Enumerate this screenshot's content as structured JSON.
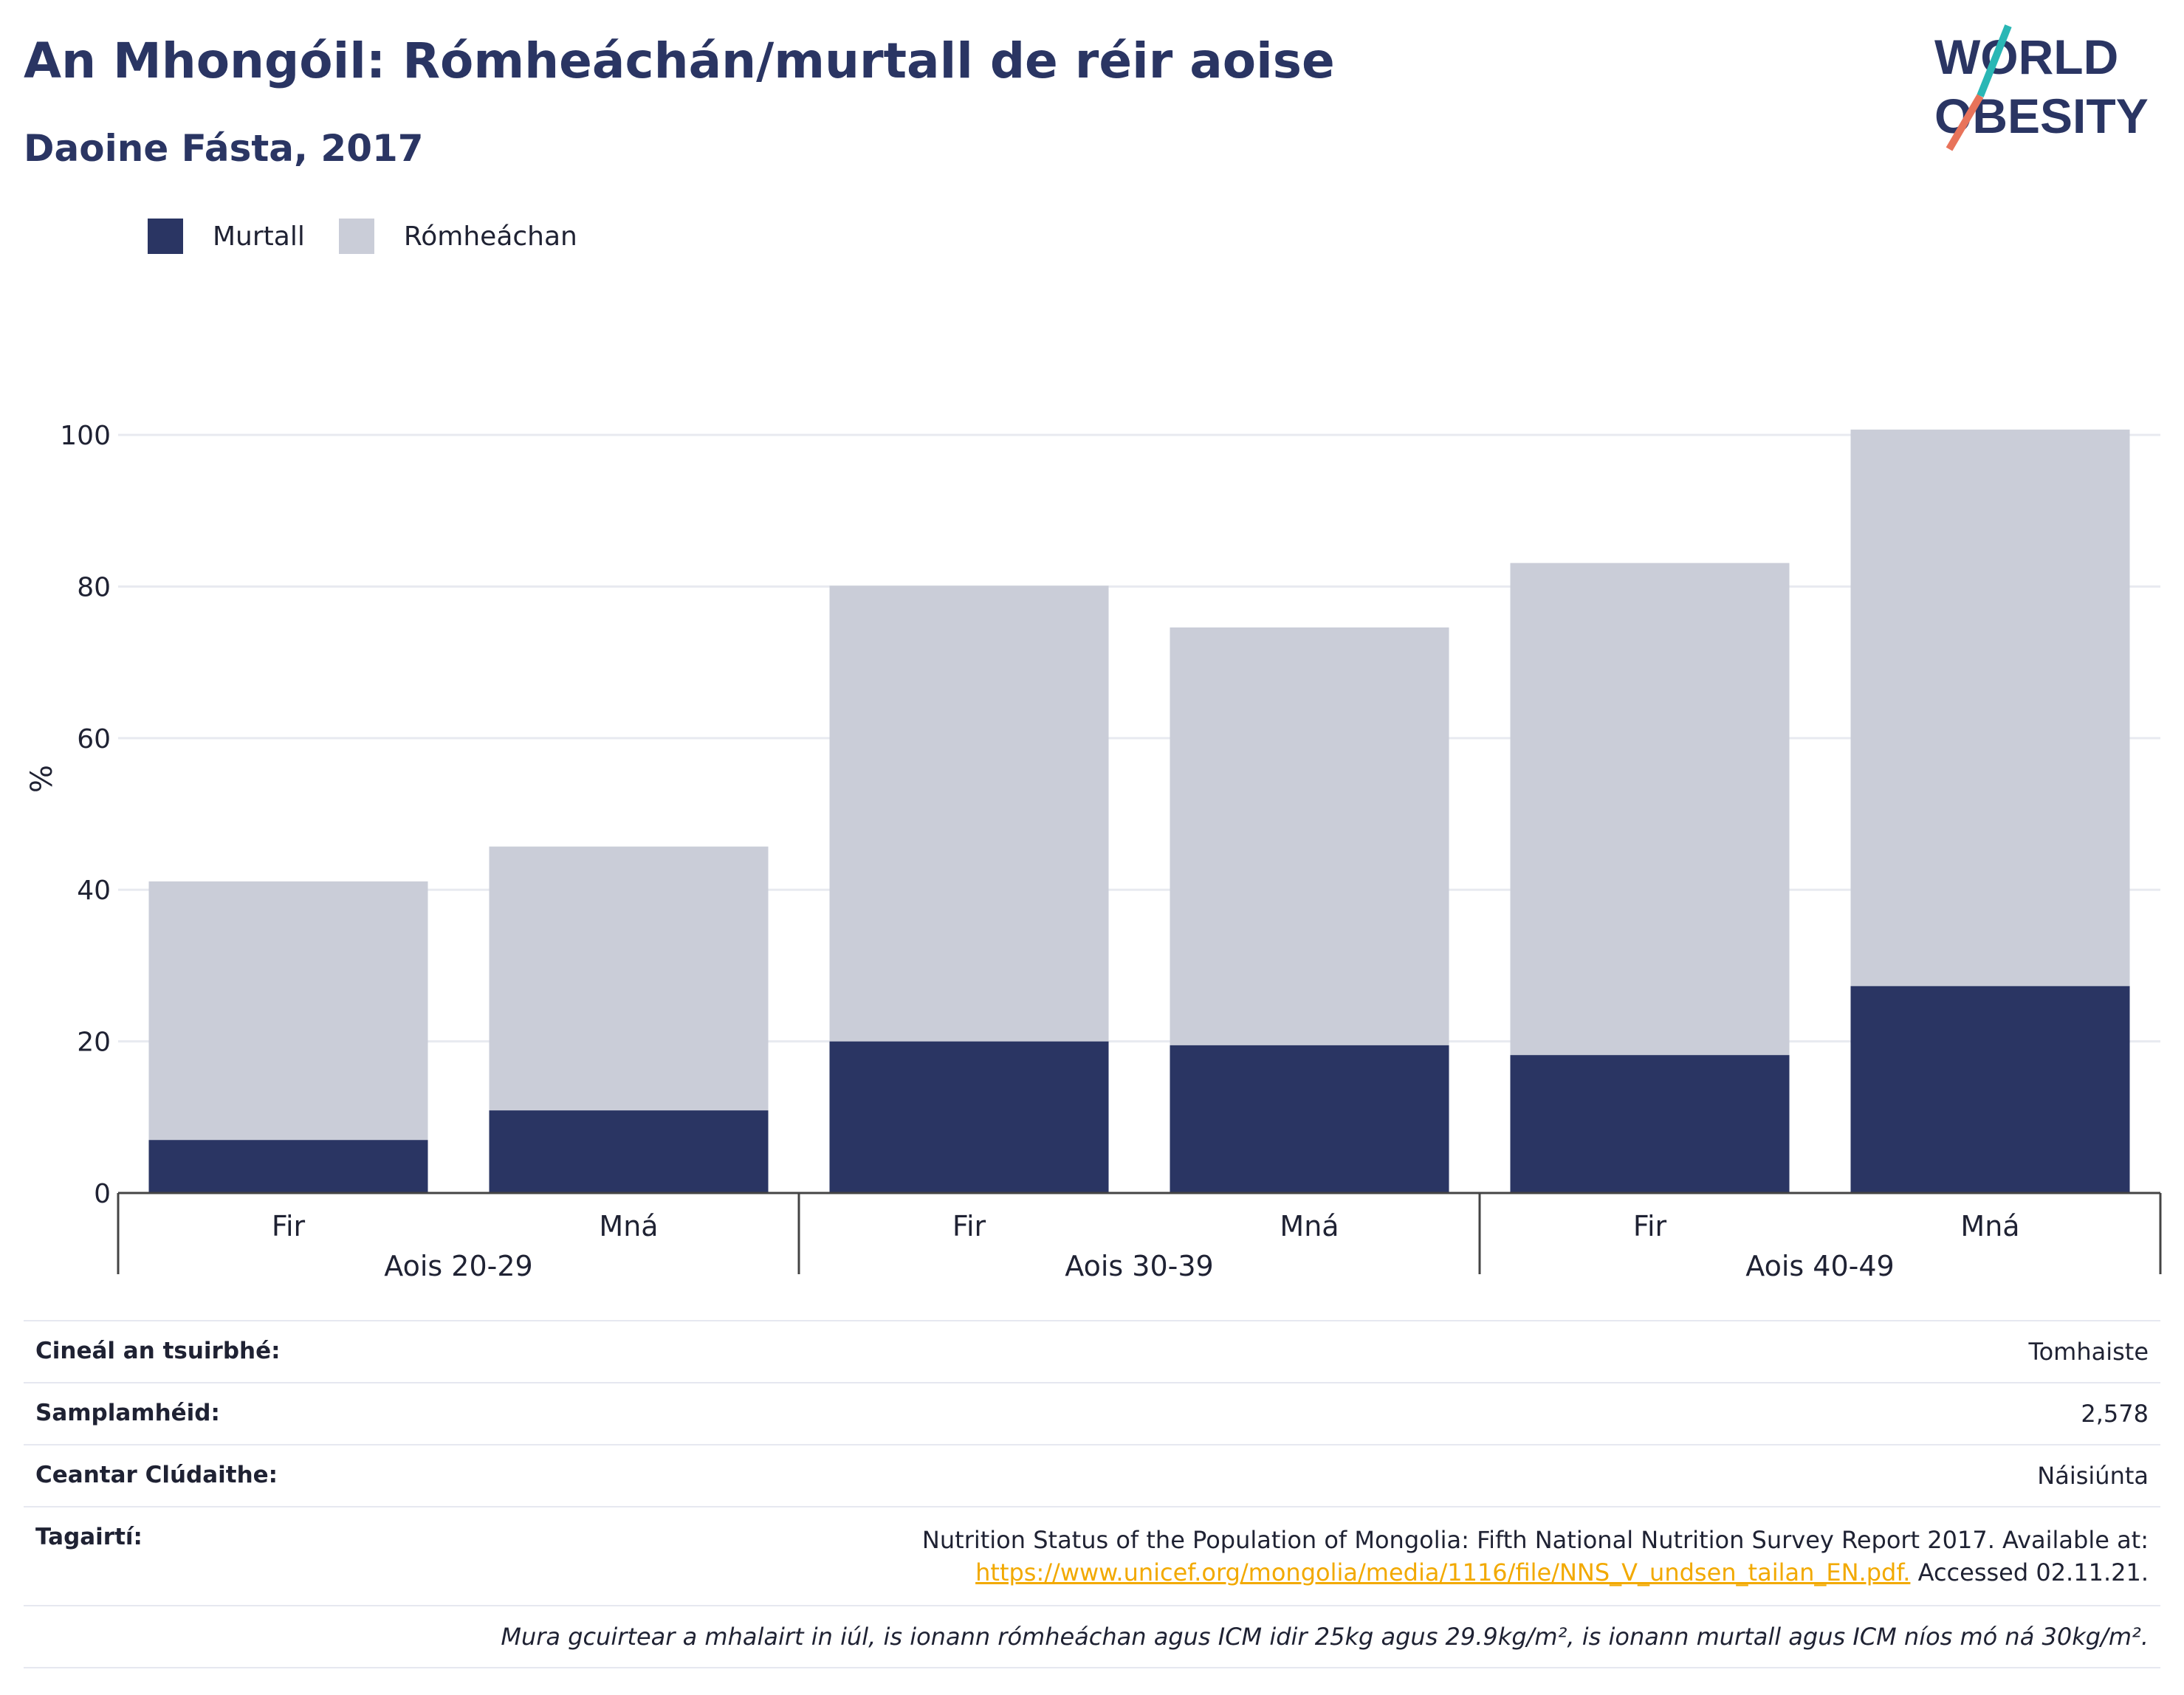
{
  "header": {
    "title": "An Mhongóil: Rómheáchán/murtall de réir aoise",
    "subtitle": "Daoine Fásta, 2017"
  },
  "logo": {
    "line1": "WORLD",
    "line2": "OBESITY"
  },
  "legend": [
    {
      "label": "Murtall",
      "color": "#2a3563"
    },
    {
      "label": "Rómheáchan",
      "color": "#cacdd8"
    }
  ],
  "chart_data": {
    "type": "bar",
    "stacked": true,
    "ylabel": "%",
    "ylim": [
      0,
      104
    ],
    "yticks": [
      0,
      20,
      40,
      60,
      80,
      100
    ],
    "grid": true,
    "legend_position": "top-left",
    "groups": [
      "Aois 20-29",
      "Aois 30-39",
      "Aois 40-49"
    ],
    "categories": [
      "Fir",
      "Mná",
      "Fir",
      "Mná",
      "Fir",
      "Mná"
    ],
    "series": [
      {
        "name": "Murtall",
        "color": "#2a3563",
        "values": [
          7.0,
          10.9,
          20.0,
          19.5,
          18.2,
          27.3
        ]
      },
      {
        "name": "Rómheáchan",
        "color": "#cacdd8",
        "values": [
          34.1,
          34.8,
          60.1,
          55.1,
          64.9,
          73.4
        ]
      }
    ]
  },
  "info": {
    "survey_type_label": "Cineál an tsuirbhé:",
    "survey_type_value": "Tomhaiste",
    "sample_label": "Samplamhéid:",
    "sample_value": "2,578",
    "area_label": "Ceantar Clúdaithe:",
    "area_value": "Náisiúnta",
    "refs_label": "Tagairtí:",
    "refs_text": "Nutrition Status of the Population of Mongolia: Fifth National Nutrition Survey Report 2017. Available at:",
    "refs_link": "https://www.unicef.org/mongolia/media/1116/file/NNS_V_undsen_tailan_EN.pdf.",
    "refs_accessed": " Accessed 02.11.21.",
    "note": "Mura gcuirtear a mhalairt in iúl, is ionann rómheáchan agus ICM idir 25kg agus 29.9kg/m², is ionann murtall agus ICM níos mó ná 30kg/m²."
  }
}
